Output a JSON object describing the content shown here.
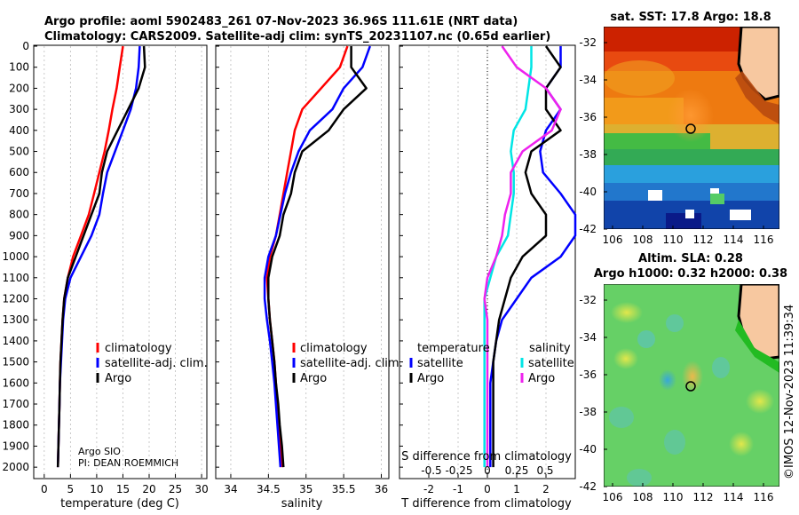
{
  "header": {
    "line1": "Argo profile: aoml 5902483_261 07-Nov-2023 36.96S 111.61E (NRT data)",
    "line2": "Climatology: CARS2009. Satellite-adj clim: synTS_20231107.nc (0.65d earlier)"
  },
  "depth_ticks": [
    0,
    100,
    200,
    300,
    400,
    500,
    600,
    700,
    800,
    900,
    1000,
    1100,
    1200,
    1300,
    1400,
    1500,
    1600,
    1700,
    1800,
    1900,
    2000
  ],
  "colors": {
    "climatology": "#ff0000",
    "satellite": "#0000ff",
    "argo": "#000000",
    "cyan": "#00e5e5",
    "magenta": "#ee22ee"
  },
  "chart_data": [
    {
      "type": "line",
      "id": "temperature",
      "xlabel": "temperature (deg C)",
      "xlim": [
        -2,
        31
      ],
      "ylim": [
        0,
        2050
      ],
      "xticks": [
        0,
        5,
        10,
        15,
        20,
        25,
        30
      ],
      "legend": [
        "climatology",
        "satellite-adj. clim.",
        "Argo"
      ],
      "annotation": [
        "Argo SIO",
        "PI: DEAN ROEMMICH"
      ],
      "series": [
        {
          "name": "climatology",
          "color": "#ff0000",
          "x": [
            15.0,
            14.4,
            13.8,
            13.0,
            12.3,
            11.5,
            10.5,
            9.5,
            8.5,
            7.0,
            5.5,
            4.5,
            3.8,
            3.5,
            3.3,
            3.1,
            3.0,
            2.9,
            2.8,
            2.7,
            2.6
          ],
          "y": [
            0,
            100,
            200,
            300,
            400,
            500,
            600,
            700,
            800,
            900,
            1000,
            1100,
            1200,
            1300,
            1400,
            1500,
            1600,
            1700,
            1800,
            1900,
            2000
          ]
        },
        {
          "name": "satellite-adj. clim.",
          "color": "#0000ff",
          "x": [
            18.2,
            18.0,
            17.5,
            16.5,
            15.0,
            13.5,
            12.0,
            11.2,
            10.5,
            9.0,
            7.0,
            5.0,
            4.0,
            3.6,
            3.4,
            3.2,
            3.0,
            2.9,
            2.8,
            2.7,
            2.6
          ],
          "y": [
            0,
            100,
            200,
            300,
            400,
            500,
            600,
            700,
            800,
            900,
            1000,
            1100,
            1200,
            1300,
            1400,
            1500,
            1600,
            1700,
            1800,
            1900,
            2000
          ]
        },
        {
          "name": "Argo",
          "color": "#000000",
          "x": [
            19.0,
            19.2,
            18.0,
            16.0,
            14.0,
            12.0,
            11.0,
            10.5,
            9.0,
            7.5,
            6.0,
            4.5,
            3.8,
            3.5,
            3.3,
            3.1,
            3.0,
            2.9,
            2.8,
            2.7,
            2.6
          ],
          "y": [
            0,
            100,
            200,
            300,
            400,
            500,
            600,
            700,
            800,
            900,
            1000,
            1100,
            1200,
            1300,
            1400,
            1500,
            1600,
            1700,
            1800,
            1900,
            2000
          ]
        }
      ]
    },
    {
      "type": "line",
      "id": "salinity",
      "xlabel": "salinity",
      "xlim": [
        33.8,
        36.1
      ],
      "ylim": [
        0,
        2050
      ],
      "xticks": [
        34,
        34.5,
        35,
        35.5,
        36
      ],
      "legend": [
        "climatology",
        "satellite-adj. clim.",
        "Argo"
      ],
      "series": [
        {
          "name": "climatology",
          "color": "#ff0000",
          "x": [
            35.55,
            35.45,
            35.2,
            34.95,
            34.85,
            34.8,
            34.75,
            34.7,
            34.65,
            34.6,
            34.52,
            34.48,
            34.5,
            34.52,
            34.55,
            34.58,
            34.6,
            34.62,
            34.64,
            34.66,
            34.68
          ],
          "y": [
            0,
            100,
            200,
            300,
            400,
            500,
            600,
            700,
            800,
            900,
            1000,
            1100,
            1200,
            1300,
            1400,
            1500,
            1600,
            1700,
            1800,
            1900,
            2000
          ]
        },
        {
          "name": "satellite-adj. clim.",
          "color": "#0000ff",
          "x": [
            35.85,
            35.75,
            35.5,
            35.35,
            35.05,
            34.9,
            34.8,
            34.72,
            34.66,
            34.6,
            34.5,
            34.45,
            34.45,
            34.48,
            34.52,
            34.55,
            34.58,
            34.6,
            34.62,
            34.64,
            34.66
          ],
          "y": [
            0,
            100,
            200,
            300,
            400,
            500,
            600,
            700,
            800,
            900,
            1000,
            1100,
            1200,
            1300,
            1400,
            1500,
            1600,
            1700,
            1800,
            1900,
            2000
          ]
        },
        {
          "name": "Argo",
          "color": "#000000",
          "x": [
            35.6,
            35.6,
            35.8,
            35.5,
            35.3,
            34.95,
            34.85,
            34.8,
            34.7,
            34.65,
            34.55,
            34.5,
            34.5,
            34.52,
            34.55,
            34.58,
            34.6,
            34.63,
            34.65,
            34.68,
            34.7
          ],
          "y": [
            0,
            100,
            200,
            300,
            400,
            500,
            600,
            700,
            800,
            900,
            1000,
            1100,
            1200,
            1300,
            1400,
            1500,
            1600,
            1700,
            1800,
            1900,
            2000
          ]
        }
      ]
    },
    {
      "type": "line",
      "id": "difference",
      "xlabel": "T difference from climatology",
      "xlabel_top": "S difference from climatology",
      "xlim": [
        -3,
        3
      ],
      "ylim": [
        0,
        2050
      ],
      "xticks": [
        -2,
        -1,
        0,
        1,
        2
      ],
      "s_ticks": [
        "-0.5",
        "-0.25",
        "0",
        "0.25",
        "0.5"
      ],
      "legend_t_title": "temperature",
      "legend_s_title": "salinity",
      "legend_t": [
        "satellite",
        "Argo"
      ],
      "legend_s": [
        "satellite",
        "Argo"
      ],
      "series": [
        {
          "name": "T satellite",
          "color": "#0000ff",
          "x": [
            2.5,
            2.5,
            2.0,
            2.5,
            2.0,
            1.8,
            1.9,
            2.5,
            3.0,
            3.0,
            2.5,
            1.5,
            1.0,
            0.5,
            0.3,
            0.2,
            0.1,
            0.1,
            0.1,
            0.1,
            0.1
          ],
          "y": [
            0,
            100,
            200,
            300,
            400,
            500,
            600,
            700,
            800,
            900,
            1000,
            1100,
            1200,
            1300,
            1400,
            1500,
            1600,
            1700,
            1800,
            1900,
            2000
          ]
        },
        {
          "name": "T Argo",
          "color": "#000000",
          "x": [
            2.0,
            2.5,
            2.0,
            2.0,
            2.5,
            1.5,
            1.3,
            1.5,
            2.0,
            2.0,
            1.2,
            0.8,
            0.6,
            0.4,
            0.3,
            0.2,
            0.2,
            0.2,
            0.2,
            0.2,
            0.2
          ],
          "y": [
            0,
            100,
            200,
            300,
            400,
            500,
            600,
            700,
            800,
            900,
            1000,
            1100,
            1200,
            1300,
            1400,
            1500,
            1600,
            1700,
            1800,
            1900,
            2000
          ]
        },
        {
          "name": "S satellite",
          "color": "#00e5e5",
          "x": [
            1.5,
            1.5,
            1.4,
            1.3,
            0.9,
            0.8,
            0.9,
            0.9,
            0.8,
            0.7,
            0.3,
            0.1,
            -0.1,
            -0.1,
            -0.1,
            -0.1,
            -0.1,
            -0.1,
            -0.1,
            -0.1,
            -0.1
          ],
          "y": [
            0,
            100,
            200,
            300,
            400,
            500,
            600,
            700,
            800,
            900,
            1000,
            1100,
            1200,
            1300,
            1400,
            1500,
            1600,
            1700,
            1800,
            1900,
            2000
          ]
        },
        {
          "name": "S Argo",
          "color": "#ee22ee",
          "x": [
            0.5,
            1.0,
            2.0,
            2.5,
            2.2,
            1.2,
            0.8,
            0.8,
            0.6,
            0.5,
            0.3,
            0.0,
            -0.1,
            0.0,
            0.0,
            0.0,
            0.0,
            0.0,
            0.0,
            0.0,
            0.0
          ],
          "y": [
            0,
            100,
            200,
            300,
            400,
            500,
            600,
            700,
            800,
            900,
            1000,
            1100,
            1200,
            1300,
            1400,
            1500,
            1600,
            1700,
            1800,
            1900,
            2000
          ]
        }
      ]
    },
    {
      "type": "heatmap",
      "id": "sst_map",
      "title": "sat. SST: 17.8 Argo: 18.8",
      "xticks": [
        106,
        108,
        110,
        112,
        114,
        116
      ],
      "yticks": [
        -32,
        -34,
        -36,
        -38,
        -40,
        -42
      ],
      "marker": {
        "lon": 111.61,
        "lat": -36.96
      }
    },
    {
      "type": "heatmap",
      "id": "sla_map",
      "title_line1": "Altim. SLA: 0.28",
      "title_line2": "Argo h1000: 0.32 h2000: 0.38",
      "xticks": [
        106,
        108,
        110,
        112,
        114,
        116
      ],
      "yticks": [
        -32,
        -34,
        -36,
        -38,
        -40,
        -42
      ],
      "marker": {
        "lon": 111.61,
        "lat": -36.96
      }
    }
  ],
  "footer_vertical": "©IMOS 12-Nov-2023 11:39:34"
}
